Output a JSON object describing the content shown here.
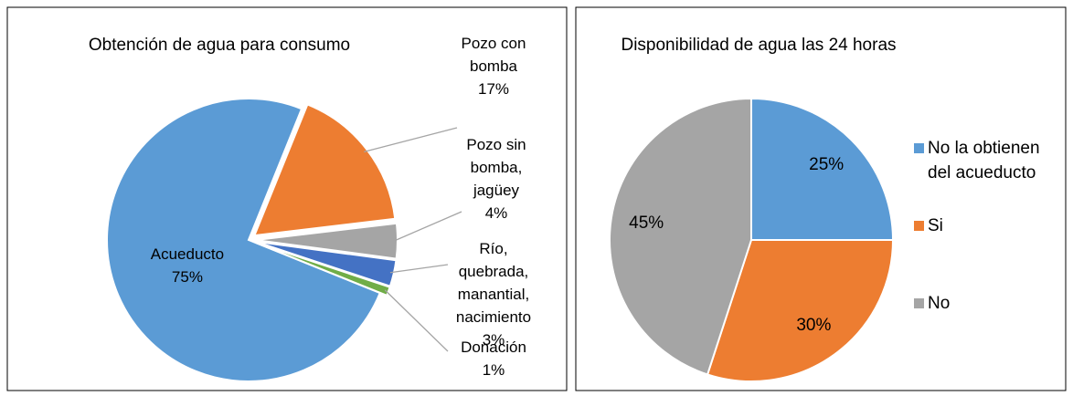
{
  "chart_data": [
    {
      "type": "pie",
      "title": "Obtención de agua para consumo",
      "categories": [
        "Acueducto",
        "Pozo con bomba",
        "Pozo sin bomba, jagüey",
        "Río, quebrada, manantial, nacimiento",
        "Donación"
      ],
      "values": [
        75,
        17,
        4,
        3,
        1
      ],
      "value_labels": [
        "75%",
        "17%",
        "4%",
        "3%",
        "1%"
      ],
      "colors": [
        "#5b9bd5",
        "#ed7d31",
        "#a5a5a5",
        "#4472c4",
        "#70ad47"
      ]
    },
    {
      "type": "pie",
      "title": "Disponibilidad de agua las 24 horas",
      "categories": [
        "No la obtienen del acueducto",
        "Si",
        "No"
      ],
      "values": [
        25,
        30,
        45
      ],
      "value_labels": [
        "25%",
        "30%",
        "45%"
      ],
      "colors": [
        "#5b9bd5",
        "#ed7d31",
        "#a5a5a5"
      ],
      "legend": "right"
    }
  ]
}
